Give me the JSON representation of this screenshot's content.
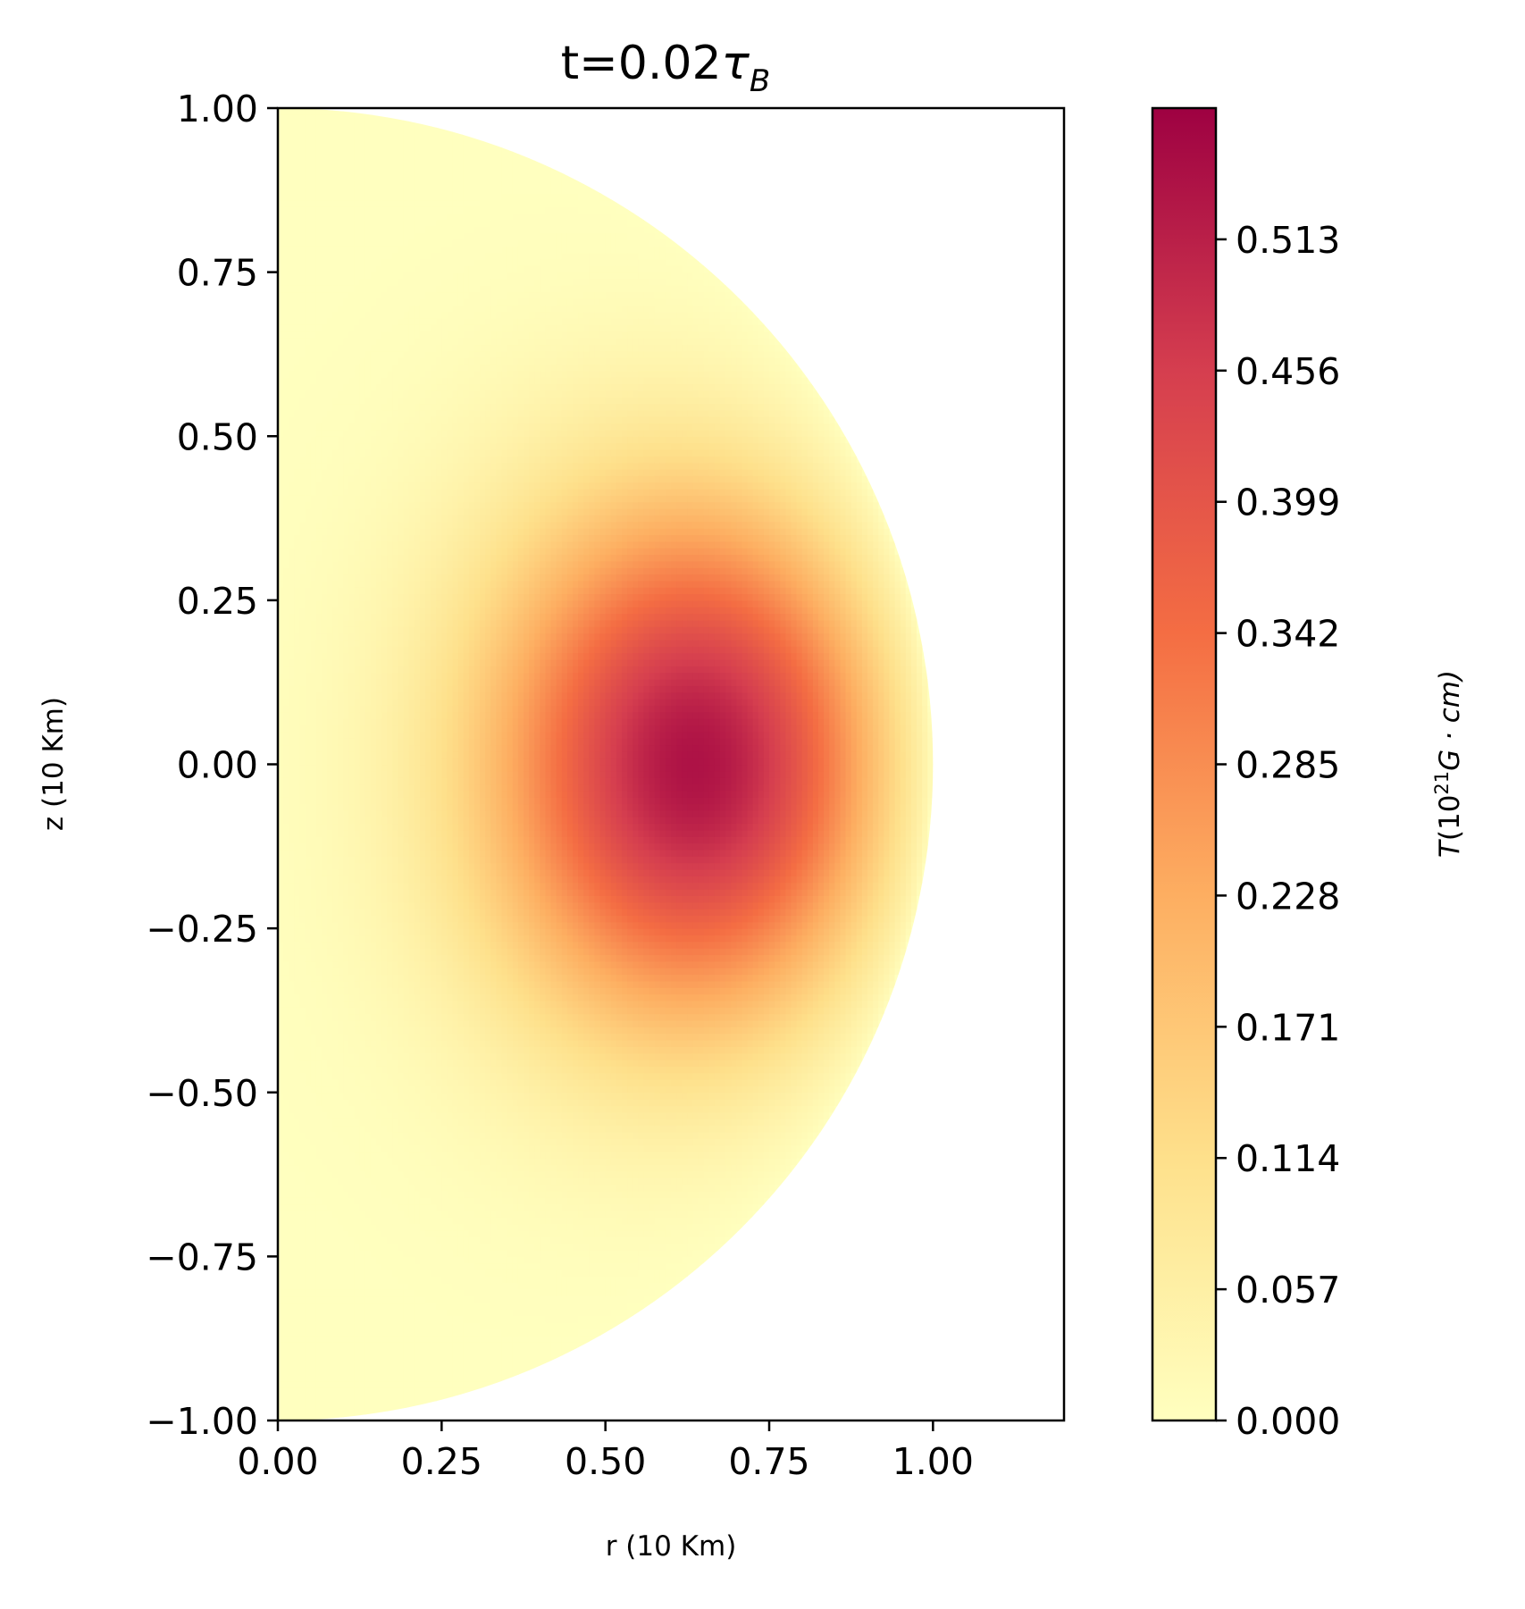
{
  "chart_data": {
    "type": "heatmap",
    "title_main": "t=0.02",
    "title_symbol": "τ",
    "title_sub": "B",
    "xlabel": "r (10 Km)",
    "ylabel": "z (10 Km)",
    "xlim": [
      0,
      1.2
    ],
    "ylim": [
      -1,
      1
    ],
    "x_ticks": [
      0,
      0.25,
      0.5,
      0.75,
      1.0
    ],
    "x_tick_labels": [
      "0.00",
      "0.25",
      "0.50",
      "0.75",
      "1.00"
    ],
    "y_ticks": [
      1,
      0.75,
      0.5,
      0.25,
      0,
      -0.25,
      -0.5,
      -0.75,
      -1
    ],
    "y_tick_labels": [
      "1.00",
      "0.75",
      "0.50",
      "0.25",
      "0.00",
      "−0.25",
      "−0.50",
      "−0.75",
      "−1.00"
    ],
    "domain": "half-disk of radius 1.0",
    "field_peak": {
      "r": 0.7,
      "z": 0.0,
      "value": 0.57
    },
    "colormap": "Spectral (reversed, upper half)",
    "colormap_stops": [
      "#ffffbf",
      "#fee08b",
      "#fdae61",
      "#f46d43",
      "#d53e4f",
      "#9e0142"
    ],
    "colorbar": {
      "vmin": 0.0,
      "vmax": 0.57,
      "ticks": [
        0.0,
        0.057,
        0.114,
        0.171,
        0.228,
        0.285,
        0.342,
        0.399,
        0.456,
        0.513
      ],
      "tick_labels": [
        "0.000",
        "0.057",
        "0.114",
        "0.171",
        "0.228",
        "0.285",
        "0.342",
        "0.399",
        "0.456",
        "0.513"
      ],
      "label_T": "T",
      "label_paren_open": "(10",
      "label_exp": "21",
      "label_rest": "G · cm)"
    }
  }
}
